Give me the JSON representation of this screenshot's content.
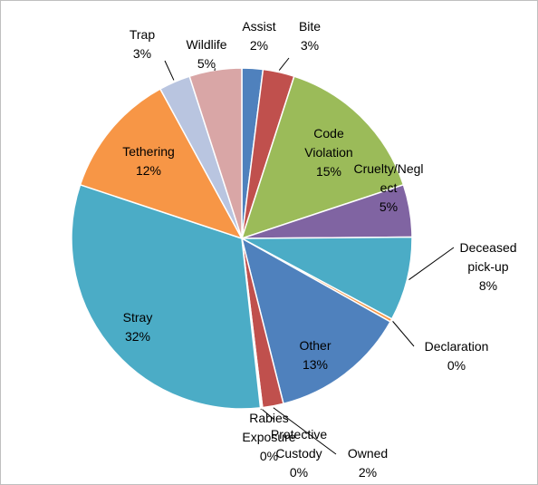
{
  "chart_data": {
    "type": "pie",
    "title": "",
    "slices": [
      {
        "label": "Assist",
        "value": 2,
        "pct_label": "2%",
        "color": "#4f81bd"
      },
      {
        "label": "Bite",
        "value": 3,
        "pct_label": "3%",
        "color": "#c0504d"
      },
      {
        "label": "Code Violation",
        "value": 15,
        "pct_label": "15%",
        "color": "#9bbb59"
      },
      {
        "label": "Cruelty/Neglect",
        "value": 5,
        "pct_label": "5%",
        "color": "#8064a2"
      },
      {
        "label": "Deceased pick-up",
        "value": 8,
        "pct_label": "8%",
        "color": "#4bacc6"
      },
      {
        "label": "Declaration",
        "value": 0.3,
        "pct_label": "0%",
        "color": "#f79646"
      },
      {
        "label": "Other",
        "value": 13,
        "pct_label": "13%",
        "color": "#4f81bd"
      },
      {
        "label": "Owned",
        "value": 2,
        "pct_label": "2%",
        "color": "#c0504d"
      },
      {
        "label": "Protective Custody",
        "value": 0.1,
        "pct_label": "0%",
        "color": "#9bbb59"
      },
      {
        "label": "Rabies Exposure",
        "value": 0.1,
        "pct_label": "0%",
        "color": "#8064a2"
      },
      {
        "label": "Stray",
        "value": 32,
        "pct_label": "32%",
        "color": "#4bacc6"
      },
      {
        "label": "Tethering",
        "value": 12,
        "pct_label": "12%",
        "color": "#f79646"
      },
      {
        "label": "Trap",
        "value": 3,
        "pct_label": "3%",
        "color": "#b9c5e0"
      },
      {
        "label": "Wildlife",
        "value": 5,
        "pct_label": "5%",
        "color": "#d9a6a6"
      }
    ],
    "labels": [
      {
        "lines": [
          "Assist",
          "2%"
        ]
      },
      {
        "lines": [
          "Bite",
          "3%"
        ]
      },
      {
        "lines": [
          "Code",
          "Violation",
          "15%"
        ]
      },
      {
        "lines": [
          "Cruelty/Negl",
          "ect",
          "5%"
        ]
      },
      {
        "lines": [
          "Deceased",
          "pick-up",
          "8%"
        ]
      },
      {
        "lines": [
          "Declaration",
          "0%"
        ]
      },
      {
        "lines": [
          "Other",
          "13%"
        ]
      },
      {
        "lines": [
          "Owned",
          "2%"
        ]
      },
      {
        "lines": [
          "Protective",
          "Custody",
          "0%"
        ]
      },
      {
        "lines": [
          "Rabies",
          "Exposure",
          "0%"
        ]
      },
      {
        "lines": [
          "Stray",
          "32%"
        ]
      },
      {
        "lines": [
          "Tethering",
          "12%"
        ]
      },
      {
        "lines": [
          "Trap",
          "3%"
        ]
      },
      {
        "lines": [
          "Wildlife",
          "5%"
        ]
      }
    ],
    "legend": "none"
  }
}
